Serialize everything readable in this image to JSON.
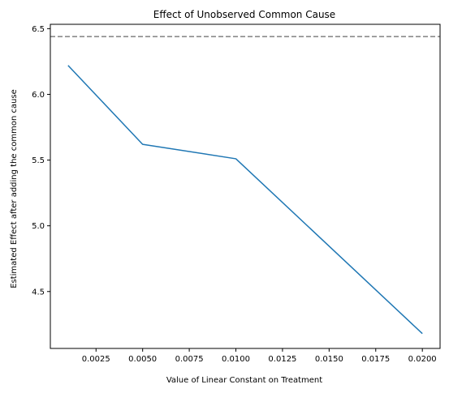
{
  "chart_data": {
    "type": "line",
    "title": "Effect of Unobserved Common Cause",
    "xlabel": "Value of Linear Constant on Treatment",
    "ylabel": "Estimated Effect after adding the common cause",
    "x": [
      0.001,
      0.005,
      0.01,
      0.02
    ],
    "series": [
      {
        "values": [
          6.22,
          5.62,
          5.51,
          4.18
        ],
        "color": "#1f77b4"
      }
    ],
    "reference_line": {
      "orientation": "horizontal",
      "y": 6.44,
      "style": "dashed",
      "color": "#808080"
    },
    "xlim": [
      5e-05,
      0.02095
    ],
    "ylim": [
      4.067,
      6.533
    ],
    "xticks": [
      {
        "value": 0.0025,
        "label": "0.0025"
      },
      {
        "value": 0.005,
        "label": "0.0050"
      },
      {
        "value": 0.0075,
        "label": "0.0075"
      },
      {
        "value": 0.01,
        "label": "0.0100"
      },
      {
        "value": 0.0125,
        "label": "0.0125"
      },
      {
        "value": 0.015,
        "label": "0.0150"
      },
      {
        "value": 0.0175,
        "label": "0.0175"
      },
      {
        "value": 0.02,
        "label": "0.0200"
      }
    ],
    "yticks": [
      {
        "value": 4.5,
        "label": "4.5"
      },
      {
        "value": 5.0,
        "label": "5.0"
      },
      {
        "value": 5.5,
        "label": "5.5"
      },
      {
        "value": 6.0,
        "label": "6.0"
      },
      {
        "value": 6.5,
        "label": "6.5"
      }
    ],
    "grid": false,
    "legend": "none"
  }
}
